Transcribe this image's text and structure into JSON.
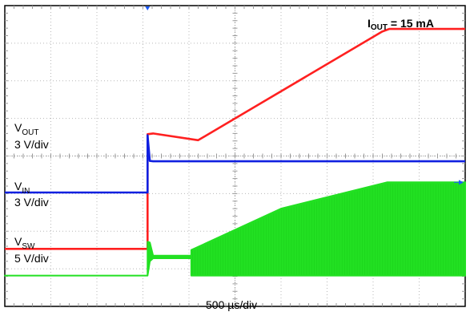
{
  "chart_data": {
    "type": "line",
    "timebase": "500 µs/div",
    "annotation": {
      "prefix": "I",
      "sub": "OUT",
      "suffix": " = 15 mA"
    },
    "grid": {
      "divisions_x": 10,
      "divisions_y": 8
    },
    "x_range_div": [
      0,
      10
    ],
    "y_range_div": [
      0,
      8
    ],
    "series": [
      {
        "name_main": "V",
        "name_sub": "OUT",
        "scale": "3 V/div",
        "color": "#ff2020",
        "type": "line",
        "x_div": [
          0,
          3.1,
          3.1,
          3.22,
          4.2,
          8.2,
          8.35,
          10
        ],
        "y_div": [
          1.53,
          1.53,
          4.58,
          4.6,
          4.42,
          7.31,
          7.38,
          7.38
        ]
      },
      {
        "name_main": "V",
        "name_sub": "IN",
        "scale": "3 V/div",
        "color": "#1020e0",
        "type": "line",
        "x_div": [
          0,
          3.1,
          3.1,
          3.15,
          3.22,
          10
        ],
        "y_div": [
          3.03,
          3.03,
          4.55,
          3.87,
          3.86,
          3.86
        ]
      },
      {
        "name_main": "V",
        "name_sub": "SW",
        "scale": "5 V/div",
        "color": "#22e022",
        "type": "envelope",
        "x_div": [
          0,
          3.1,
          3.1,
          3.15,
          3.22,
          4.05,
          4.05,
          6.0,
          8.3,
          10
        ],
        "y_hi_div": [
          0.82,
          0.82,
          1.72,
          1.7,
          1.35,
          1.35,
          1.5,
          2.6,
          3.3,
          3.3
        ],
        "y_lo_div": [
          0.82,
          0.82,
          0.82,
          1.2,
          1.28,
          1.28,
          0.82,
          0.82,
          0.82,
          0.82
        ]
      }
    ],
    "trigger_marker_x_div": 3.1,
    "level_marker_y_div": 3.3
  }
}
